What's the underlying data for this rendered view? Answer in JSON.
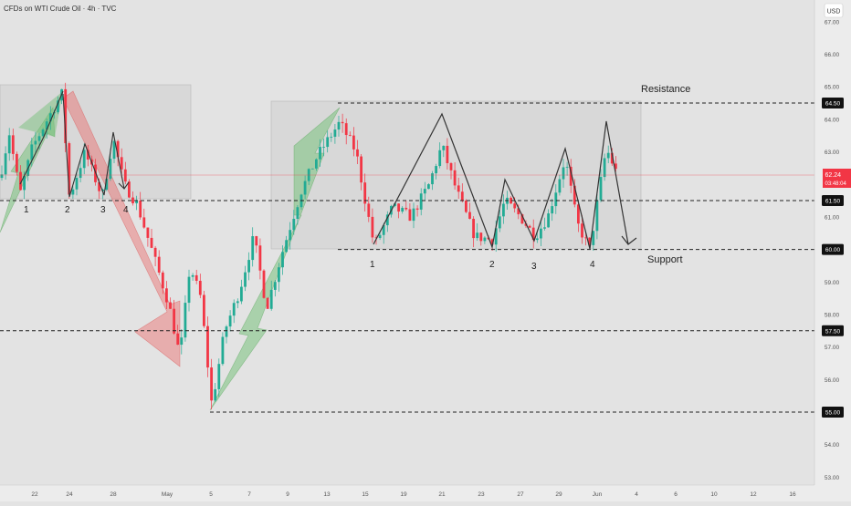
{
  "header": {
    "title": "CFDs on WTI Crude Oil · 4h · TVC",
    "currency": "USD"
  },
  "price_tag": {
    "price": "62.24",
    "countdown": "03:48:04",
    "color": "#f23645"
  },
  "colors": {
    "up": "#22ab94",
    "down": "#f23645",
    "bg": "#e3e3e3",
    "axis_bg": "#ececec"
  },
  "annotations": {
    "resistance": "Resistance",
    "support": "Support",
    "left_wave_labels": [
      "1",
      "2",
      "3",
      "4"
    ],
    "right_wave_labels": [
      "1",
      "2",
      "3",
      "4"
    ]
  },
  "chart_data": {
    "type": "candlestick",
    "symbol": "WTI Crude Oil CFD",
    "timeframe": "4h",
    "y_range": [
      52.8,
      67.4
    ],
    "y_ticks": [
      53,
      54,
      55,
      56,
      57,
      58,
      59,
      60,
      61,
      62,
      63,
      64,
      65,
      66,
      67
    ],
    "x_ticks": [
      "22",
      "24",
      "28",
      "May",
      "5",
      "7",
      "9",
      "13",
      "15",
      "19",
      "21",
      "23",
      "27",
      "29",
      "Jun",
      "4",
      "6",
      "10",
      "12",
      "16"
    ],
    "levels": [
      {
        "label": "64.50",
        "value": 64.5,
        "role": "resistance"
      },
      {
        "label": "61.50",
        "value": 61.5
      },
      {
        "label": "60.00",
        "value": 60.0,
        "role": "support"
      },
      {
        "label": "57.50",
        "value": 57.5
      },
      {
        "label": "55.00",
        "value": 55.0
      }
    ],
    "last_price": 62.24,
    "grid": false
  }
}
